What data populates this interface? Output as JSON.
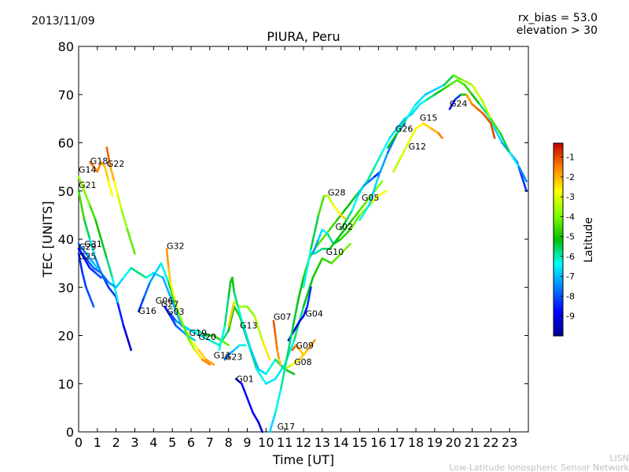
{
  "chart_data": {
    "type": "line",
    "date": "2013/11/09",
    "rx_bias": "rx_bias = 53.0",
    "elevation": "elevation > 30",
    "title": "PIURA, Peru",
    "xlabel": "Time [UT]",
    "ylabel": "TEC [UNITS]",
    "xlim": [
      0,
      24
    ],
    "ylim": [
      0,
      80
    ],
    "xticks": [
      "0",
      "1",
      "2",
      "3",
      "4",
      "5",
      "6",
      "7",
      "8",
      "9",
      "10",
      "11",
      "12",
      "13",
      "14",
      "15",
      "16",
      "17",
      "18",
      "19",
      "20",
      "21",
      "22",
      "23"
    ],
    "yticks": [
      "0",
      "10",
      "20",
      "30",
      "40",
      "50",
      "60",
      "70",
      "80"
    ],
    "colorbar": {
      "label": "Latitude",
      "range": [
        -10,
        -0.3
      ],
      "ticks": [
        "-1",
        "-2",
        "-3",
        "-4",
        "-5",
        "-6",
        "-7",
        "-8",
        "-9"
      ],
      "tick_values": [
        -1,
        -2,
        -3,
        -4,
        -5,
        -6,
        -7,
        -8,
        -9
      ]
    },
    "series": [
      {
        "name": "G21",
        "x": [
          0.0,
          0.3,
          0.6,
          0.9,
          1.2,
          1.6,
          2.0,
          2.4,
          2.8
        ],
        "y": [
          50,
          44,
          40,
          36,
          33,
          30,
          28,
          22,
          17
        ],
        "lat": [
          -4.2,
          -5,
          -6,
          -7,
          -8,
          -8.5,
          -8,
          -9,
          -9.5
        ]
      },
      {
        "name": "G14",
        "x": [
          0.0,
          0.3,
          0.6,
          0.9,
          1.2,
          1.5,
          1.8,
          2.1
        ],
        "y": [
          53,
          50,
          47,
          44,
          40,
          36,
          32,
          27
        ],
        "lat": [
          -3.5,
          -3.8,
          -4.2,
          -4.8,
          -5.2,
          -5.5,
          -6,
          -6.5
        ]
      },
      {
        "name": "G18",
        "x": [
          0.6,
          0.8,
          1.0,
          1.2,
          1.4,
          1.6,
          1.8
        ],
        "y": [
          56,
          55,
          54,
          56,
          55,
          52,
          49
        ],
        "lat": [
          -1.2,
          -1.5,
          -1.3,
          -1.8,
          -2,
          -2.5,
          -3
        ]
      },
      {
        "name": "G22",
        "x": [
          1.5,
          1.7,
          1.9,
          2.1,
          2.3,
          2.6,
          3.0
        ],
        "y": [
          59,
          55,
          52,
          49,
          46,
          42,
          37
        ],
        "lat": [
          -1,
          -1.5,
          -2.5,
          -3,
          -3.5,
          -4,
          -4.5
        ]
      },
      {
        "name": "G20",
        "x": [
          0.0,
          0.4,
          0.8,
          1.2,
          1.6,
          2.0,
          2.4,
          2.8,
          3.2,
          3.6,
          4.0,
          4.5,
          5.0,
          5.5,
          6.0,
          6.5,
          7.0,
          7.5,
          8.0,
          8.3,
          8.6,
          9.0,
          9.5,
          10.0,
          10.5,
          11.0,
          11.5,
          12.0,
          12.5,
          13.0,
          13.5,
          14.0,
          14.5
        ],
        "y": [
          38,
          36,
          34,
          33,
          31,
          30,
          32,
          34,
          33,
          32,
          33,
          32,
          27,
          22,
          21,
          20,
          19,
          18,
          21,
          26,
          24,
          19,
          13,
          10,
          11,
          14,
          19,
          26,
          32,
          36,
          35,
          37,
          39
        ],
        "lat": [
          -7.5,
          -7.8,
          -8,
          -7.8,
          -7.5,
          -7,
          -6.5,
          -6,
          -5.5,
          -6,
          -6.5,
          -7,
          -7.2,
          -7,
          -6.8,
          -6.5,
          -6.2,
          -6,
          -5.5,
          -5,
          -4.8,
          -5.5,
          -6,
          -6.5,
          -6.8,
          -6.5,
          -6,
          -5.5,
          -5,
          -4.8,
          -4.5,
          -4.2,
          -4
        ]
      },
      {
        "name": "G25",
        "x": [
          0.0,
          0.2,
          0.4,
          0.6,
          0.8
        ],
        "y": [
          37,
          33,
          30,
          28,
          26
        ],
        "lat": [
          -8.5,
          -8.3,
          -8.2,
          -8,
          -7.8
        ]
      },
      {
        "name": "G16",
        "x": [
          3.2,
          3.5,
          3.8,
          4.1,
          4.4,
          4.8,
          5.2,
          5.6,
          6.0,
          6.4,
          6.8,
          7.2
        ],
        "y": [
          25,
          28,
          31,
          33,
          35,
          31,
          26,
          22,
          19,
          17,
          15,
          14
        ],
        "lat": [
          -8.5,
          -8,
          -7.5,
          -7,
          -6.5,
          -6,
          -5,
          -4,
          -3,
          -2.5,
          -2,
          -1.5
        ]
      },
      {
        "name": "G06",
        "x": [
          4.6,
          4.9,
          5.2,
          5.5,
          5.8,
          6.2
        ],
        "y": [
          26,
          24,
          22,
          21,
          20,
          19
        ],
        "lat": [
          -9,
          -8.5,
          -8,
          -7.5,
          -7,
          -6.5
        ]
      },
      {
        "name": "G03",
        "x": [
          4.8,
          5.2,
          5.6,
          6.0,
          6.4,
          6.8,
          7.2,
          7.6,
          8.0
        ],
        "y": [
          25,
          23,
          22,
          21,
          21,
          20,
          20,
          19,
          18
        ],
        "lat": [
          -8.5,
          -7.5,
          -7,
          -6.5,
          -6,
          -5.5,
          -5,
          -4.5,
          -4
        ]
      },
      {
        "name": "G32",
        "x": [
          4.7,
          4.8,
          4.9,
          5.1,
          5.3,
          5.6,
          5.9,
          6.2,
          6.6,
          7.0
        ],
        "y": [
          38,
          34,
          31,
          28,
          25,
          22,
          19,
          17,
          15,
          14
        ],
        "lat": [
          -1.5,
          -2,
          -2.5,
          -3,
          -3.5,
          -4,
          -4.5,
          -3,
          -2,
          -1.2
        ]
      },
      {
        "name": "G13",
        "x": [
          8.0,
          8.3,
          8.6,
          9.0,
          9.4,
          9.8,
          10.2
        ],
        "y": [
          22,
          27,
          26,
          26,
          24,
          19,
          15
        ],
        "lat": [
          -1.5,
          -3,
          -3.5,
          -3.8,
          -4,
          -3,
          -2
        ]
      },
      {
        "name": "G23",
        "x": [
          7.5,
          7.8,
          8.0,
          8.1,
          8.2,
          8.3,
          8.5,
          8.8,
          9.2,
          9.6,
          10.0,
          10.5,
          11.0,
          11.5
        ],
        "y": [
          17,
          22,
          28,
          31,
          32,
          29,
          26,
          22,
          17,
          13,
          12,
          15,
          13,
          12
        ],
        "lat": [
          -6.5,
          -6,
          -5.5,
          -5.2,
          -5,
          -5.5,
          -6,
          -6.5,
          -6.8,
          -7,
          -6.5,
          -6,
          -5.5,
          -5
        ]
      },
      {
        "name": "G01",
        "x": [
          8.4,
          8.7,
          9.0,
          9.3,
          9.6,
          9.8
        ],
        "y": [
          11,
          10,
          7,
          4,
          2,
          0
        ],
        "lat": [
          -9,
          -8.8,
          -8.5,
          -8.8,
          -9,
          -9.5
        ]
      },
      {
        "name": "G07",
        "x": [
          10.4,
          10.5,
          10.6,
          10.7,
          10.8
        ],
        "y": [
          23,
          20,
          17,
          15,
          14
        ],
        "lat": [
          -1,
          -1.3,
          -1.5,
          -2,
          -2.5
        ]
      },
      {
        "name": "G09",
        "x": [
          11.4,
          11.6,
          11.8,
          12.0
        ],
        "y": [
          17,
          18,
          17,
          16
        ],
        "lat": [
          -1,
          -1.5,
          -2,
          -2.5
        ]
      },
      {
        "name": "G08",
        "x": [
          11.0,
          11.4,
          11.8,
          12.2,
          12.6
        ],
        "y": [
          13,
          14,
          15,
          17,
          19
        ],
        "lat": [
          -3.5,
          -3,
          -2.5,
          -2,
          -1.5
        ]
      },
      {
        "name": "G04",
        "x": [
          11.2,
          11.5,
          11.8,
          12.0,
          12.2,
          12.4
        ],
        "y": [
          19,
          21,
          23,
          24,
          26,
          30
        ],
        "lat": [
          -9.5,
          -9.2,
          -9,
          -8.8,
          -8.5,
          -8
        ]
      },
      {
        "name": "G17",
        "x": [
          10.2,
          10.5,
          10.8,
          11.1,
          11.4,
          11.7,
          12.0,
          12.3,
          12.6,
          13.0,
          13.4,
          13.8,
          14.2,
          14.6,
          15.0,
          15.4,
          15.8,
          16.2,
          16.6,
          17.0,
          17.4,
          17.8,
          18.2,
          18.6,
          19.0,
          19.4,
          19.8,
          20.2,
          20.6,
          21.0,
          21.4,
          21.8,
          22.2,
          22.6,
          23.0,
          23.4,
          23.9
        ],
        "y": [
          0,
          4,
          9,
          15,
          21,
          27,
          32,
          36,
          38,
          40,
          42,
          44,
          46,
          48,
          50,
          52,
          55,
          58,
          61,
          63,
          65,
          66,
          68,
          69,
          70,
          71,
          72,
          73,
          72,
          70,
          68,
          66,
          63,
          60,
          58,
          56,
          50
        ],
        "lat": [
          -7,
          -6.5,
          -6,
          -5.8,
          -5.5,
          -5.2,
          -5,
          -4.8,
          -4.5,
          -4.2,
          -4.5,
          -4.8,
          -5,
          -5.2,
          -5.5,
          -5.8,
          -6,
          -6.2,
          -6.5,
          -6.8,
          -7,
          -6.8,
          -6.5,
          -6,
          -5.5,
          -5,
          -4.5,
          -4.2,
          -4.5,
          -5,
          -5.5,
          -6,
          -6.5,
          -7,
          -7.5,
          -8,
          -8.5
        ]
      },
      {
        "name": "G28",
        "x": [
          12.0,
          12.4,
          12.8,
          13.1,
          13.3,
          13.6,
          14.0,
          14.3
        ],
        "y": [
          30,
          38,
          45,
          49,
          49,
          47,
          45,
          44
        ],
        "lat": [
          -6.5,
          -6,
          -5,
          -4,
          -3.5,
          -3,
          -2.5,
          -2
        ]
      },
      {
        "name": "G02",
        "x": [
          12.5,
          12.8,
          13.0,
          13.3,
          13.6,
          14.0,
          14.5,
          15.0,
          15.5,
          16.0,
          16.4
        ],
        "y": [
          37,
          40,
          42,
          41,
          39,
          40,
          42,
          45,
          47,
          49,
          50
        ],
        "lat": [
          -7.5,
          -7,
          -6.5,
          -6,
          -5.5,
          -5,
          -4.5,
          -4,
          -3.5,
          -3,
          -2.5
        ]
      },
      {
        "name": "G10",
        "x": [
          12.6,
          13.0,
          13.4,
          13.8,
          14.2,
          14.6,
          15.0,
          15.4,
          15.8,
          16.2
        ],
        "y": [
          37,
          38,
          38,
          40,
          42,
          44,
          46,
          48,
          50,
          52
        ],
        "lat": [
          -6,
          -5.8,
          -5.5,
          -5.2,
          -5,
          -4.8,
          -4.5,
          -4.2,
          -4,
          -3.8
        ]
      },
      {
        "name": "G05",
        "x": [
          14.0,
          14.3,
          14.6,
          14.9,
          15.2,
          15.5,
          15.8,
          16.1
        ],
        "y": [
          42,
          44,
          46,
          49,
          51,
          52,
          53,
          54
        ],
        "lat": [
          -5,
          -5.5,
          -6,
          -6.5,
          -7,
          -7.5,
          -8,
          -9
        ]
      },
      {
        "name": "G26",
        "x": [
          15.0,
          15.5,
          16.0,
          16.5,
          17.0,
          17.4
        ],
        "y": [
          44,
          47,
          53,
          58,
          62,
          64
        ],
        "lat": [
          -6,
          -6.5,
          -7,
          -7.5,
          -8,
          -9
        ]
      },
      {
        "name": "G12",
        "x": [
          16.8,
          17.2,
          17.6,
          18.0,
          18.4,
          18.8,
          19.2,
          19.4
        ],
        "y": [
          54,
          57,
          60,
          63,
          64,
          63,
          62,
          61
        ],
        "lat": [
          -3.5,
          -3.2,
          -3,
          -2.8,
          -2.5,
          -2.2,
          -1.8,
          -1.2
        ]
      },
      {
        "name": "G15",
        "x": [
          16.5,
          17.0,
          17.5,
          18.0,
          18.5,
          19.0,
          19.5,
          20.0,
          20.5,
          21.0,
          21.5,
          22.0,
          22.5,
          23.0,
          23.5,
          23.9
        ],
        "y": [
          59,
          62,
          65,
          68,
          70,
          71,
          72,
          74,
          73,
          72,
          69,
          65,
          62,
          58,
          55,
          52
        ],
        "lat": [
          -5,
          -5.5,
          -6,
          -6.5,
          -6.8,
          -7,
          -6.5,
          -4.5,
          -4,
          -3.5,
          -3,
          -4,
          -5,
          -6,
          -7,
          -8
        ]
      },
      {
        "name": "G24",
        "x": [
          19.8,
          20.1,
          20.4,
          20.7,
          21.0,
          21.3,
          21.6,
          22.0,
          22.2
        ],
        "y": [
          67,
          69,
          70,
          70,
          68,
          67,
          66,
          64,
          61
        ],
        "lat": [
          -9,
          -8.5,
          -8,
          -2,
          -1.5,
          -1.3,
          -1.2,
          -1,
          -1
        ]
      },
      {
        "name": "G11",
        "x": [
          7.8,
          8.0,
          8.3,
          8.6,
          8.9
        ],
        "y": [
          15,
          16,
          17,
          18,
          18
        ],
        "lat": [
          -8,
          -7.5,
          -7,
          -6.5,
          -6
        ]
      },
      {
        "name": "G31",
        "x": [
          0.0,
          0.2,
          0.4,
          0.6,
          0.8,
          1.0
        ],
        "y": [
          39,
          38,
          37,
          36,
          35,
          34
        ],
        "lat": [
          -8,
          -7.8,
          -7.5,
          -7.2,
          -7,
          -6.8
        ]
      },
      {
        "name": "G29",
        "x": [
          0.0,
          0.3,
          0.6,
          0.9,
          1.2
        ],
        "y": [
          38,
          36,
          34,
          33,
          32
        ],
        "lat": [
          -9,
          -8.8,
          -8.5,
          -8.2,
          -8
        ]
      }
    ],
    "sat_labels": [
      {
        "text": "G18",
        "x": 0.62,
        "y": 55.6
      },
      {
        "text": "G22",
        "x": 1.5,
        "y": 55.0
      },
      {
        "text": "G14",
        "x": 0.0,
        "y": 53.8
      },
      {
        "text": "G21",
        "x": 0.0,
        "y": 50.6
      },
      {
        "text": "G31",
        "x": 0.3,
        "y": 38.4
      },
      {
        "text": "G29",
        "x": 0.0,
        "y": 37.8
      },
      {
        "text": "G25",
        "x": 0.0,
        "y": 35.8
      },
      {
        "text": "G16",
        "x": 3.2,
        "y": 24.5
      },
      {
        "text": "G06",
        "x": 4.1,
        "y": 26.6
      },
      {
        "text": "G27",
        "x": 4.4,
        "y": 25.9
      },
      {
        "text": "G03",
        "x": 4.7,
        "y": 24.3
      },
      {
        "text": "G32",
        "x": 4.7,
        "y": 38.0
      },
      {
        "text": "G19",
        "x": 5.9,
        "y": 19.9
      },
      {
        "text": "G20",
        "x": 6.4,
        "y": 19.1
      },
      {
        "text": "G13",
        "x": 8.6,
        "y": 21.5
      },
      {
        "text": "G11",
        "x": 7.2,
        "y": 15.3
      },
      {
        "text": "G23",
        "x": 7.8,
        "y": 14.9
      },
      {
        "text": "G01",
        "x": 8.4,
        "y": 10.4
      },
      {
        "text": "G07",
        "x": 10.4,
        "y": 23.3
      },
      {
        "text": "G04",
        "x": 12.1,
        "y": 23.9
      },
      {
        "text": "G09",
        "x": 11.6,
        "y": 17.3
      },
      {
        "text": "G08",
        "x": 11.5,
        "y": 13.9
      },
      {
        "text": "G17",
        "x": 10.6,
        "y": 0.5
      },
      {
        "text": "G28",
        "x": 13.3,
        "y": 49.1
      },
      {
        "text": "G02",
        "x": 13.7,
        "y": 42.0
      },
      {
        "text": "G10",
        "x": 13.2,
        "y": 36.7
      },
      {
        "text": "G05",
        "x": 15.1,
        "y": 48.0
      },
      {
        "text": "G26",
        "x": 16.9,
        "y": 62.3
      },
      {
        "text": "G15",
        "x": 18.2,
        "y": 64.6
      },
      {
        "text": "G12",
        "x": 17.6,
        "y": 58.6
      },
      {
        "text": "G24",
        "x": 19.8,
        "y": 67.5
      }
    ]
  },
  "footer": {
    "line1": "LISN",
    "line2": "Low-Latitude Ionospheric Sensor Network"
  }
}
